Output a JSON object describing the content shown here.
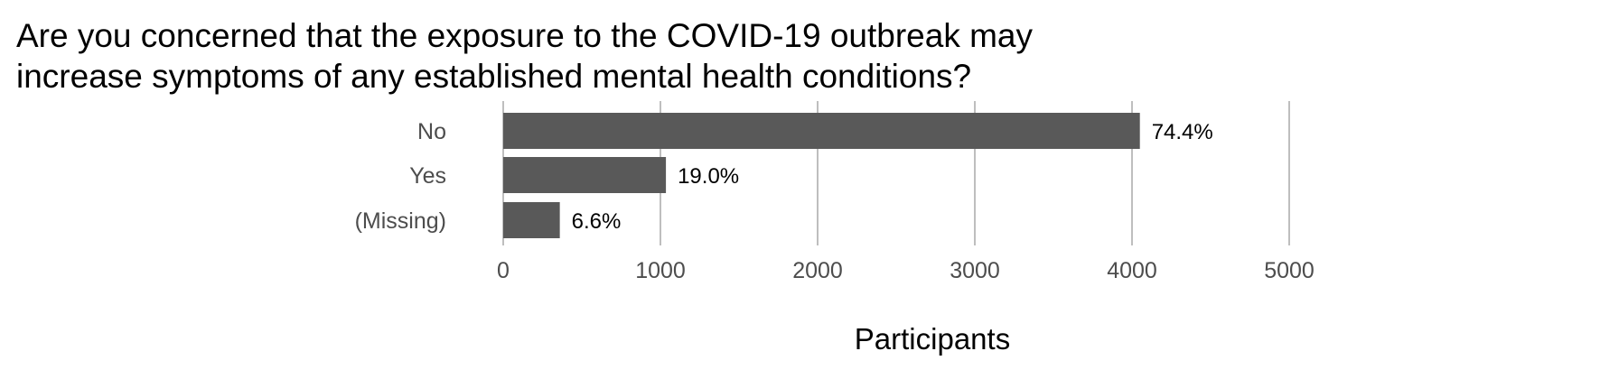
{
  "chart_data": {
    "type": "bar",
    "orientation": "horizontal",
    "title": "Are you concerned that the exposure to the COVID-19 outbreak may increase symptoms of any established mental health conditions?",
    "title_lines": [
      "Are you concerned that the exposure to the COVID-19 outbreak may",
      "increase symptoms of any established mental health conditions?"
    ],
    "categories": [
      "No",
      "Yes",
      "(Missing)"
    ],
    "values": [
      4050,
      1035,
      360
    ],
    "data_labels": [
      "74.4%",
      "19.0%",
      "6.6%"
    ],
    "xlabel": "Participants",
    "ylabel": "",
    "xlim": [
      0,
      5000
    ],
    "x_ticks": [
      0,
      1000,
      2000,
      3000,
      4000,
      5000
    ],
    "x_tick_labels": [
      "0",
      "1000",
      "2000",
      "3000",
      "4000",
      "5000"
    ],
    "grid": true,
    "bar_color": "#595959",
    "grid_color": "#bebebe"
  }
}
